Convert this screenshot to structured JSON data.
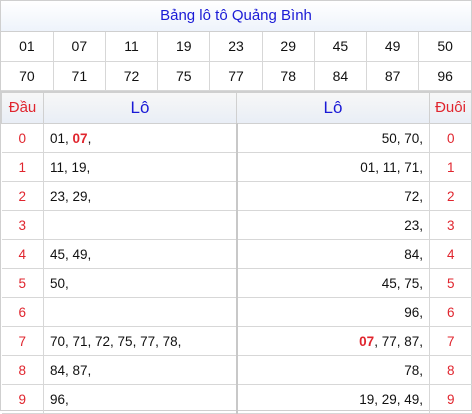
{
  "title": "Bảng lô tô Quảng Bình",
  "numbers": [
    [
      {
        "v": "01"
      },
      {
        "v": "07",
        "red": true
      },
      {
        "v": "11"
      },
      {
        "v": "19"
      },
      {
        "v": "23"
      },
      {
        "v": "29"
      },
      {
        "v": "45"
      },
      {
        "v": "49"
      },
      {
        "v": "50"
      }
    ],
    [
      {
        "v": "70"
      },
      {
        "v": "71"
      },
      {
        "v": "72"
      },
      {
        "v": "75"
      },
      {
        "v": "77"
      },
      {
        "v": "78"
      },
      {
        "v": "84"
      },
      {
        "v": "87"
      },
      {
        "v": "96"
      }
    ]
  ],
  "headers": {
    "dau": "Đầu",
    "lo_left": "Lô",
    "lo_right": "Lô",
    "duoi": "Đuôi"
  },
  "rows": [
    {
      "dau": "0",
      "left": [
        {
          "t": "01, "
        },
        {
          "t": "07",
          "red": true
        },
        {
          "t": ","
        }
      ],
      "right": [
        {
          "t": "50, 70,"
        }
      ],
      "duoi": "0"
    },
    {
      "dau": "1",
      "left": [
        {
          "t": "11, 19,"
        }
      ],
      "right": [
        {
          "t": "01, 11, 71,"
        }
      ],
      "duoi": "1"
    },
    {
      "dau": "2",
      "left": [
        {
          "t": "23, 29,"
        }
      ],
      "right": [
        {
          "t": "72,"
        }
      ],
      "duoi": "2"
    },
    {
      "dau": "3",
      "left": [],
      "right": [
        {
          "t": "23,"
        }
      ],
      "duoi": "3"
    },
    {
      "dau": "4",
      "left": [
        {
          "t": "45, 49,"
        }
      ],
      "right": [
        {
          "t": "84,"
        }
      ],
      "duoi": "4"
    },
    {
      "dau": "5",
      "left": [
        {
          "t": "50,"
        }
      ],
      "right": [
        {
          "t": "45, 75,"
        }
      ],
      "duoi": "5"
    },
    {
      "dau": "6",
      "left": [],
      "right": [
        {
          "t": "96,"
        }
      ],
      "duoi": "6"
    },
    {
      "dau": "7",
      "left": [
        {
          "t": "70, 71, 72, 75, 77, 78,"
        }
      ],
      "right": [
        {
          "t": "07",
          "red": true
        },
        {
          "t": ", 77, 87,"
        }
      ],
      "duoi": "7"
    },
    {
      "dau": "8",
      "left": [
        {
          "t": "84, 87,"
        }
      ],
      "right": [
        {
          "t": "78,"
        }
      ],
      "duoi": "8"
    },
    {
      "dau": "9",
      "left": [
        {
          "t": "96,"
        }
      ],
      "right": [
        {
          "t": "19, 29, 49,"
        }
      ],
      "duoi": "9"
    }
  ]
}
